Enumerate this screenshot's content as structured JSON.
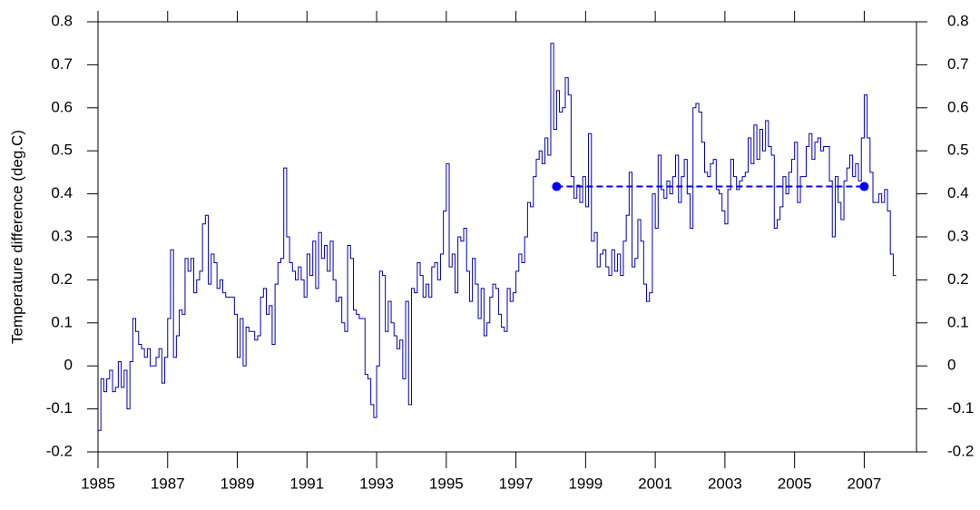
{
  "chart_data": {
    "type": "line",
    "step": true,
    "ylabel": "Temperature difference (deg.C)",
    "xlim": [
      1985,
      2008.5
    ],
    "xticks": [
      1985,
      1987,
      1989,
      1991,
      1993,
      1995,
      1997,
      1999,
      2001,
      2003,
      2005,
      2007
    ],
    "ylim": [
      -0.2,
      0.8
    ],
    "yticks": [
      -0.2,
      -0.1,
      0,
      0.1,
      0.2,
      0.3,
      0.4,
      0.5,
      0.6,
      0.7,
      0.8
    ],
    "y2lim": [
      -0.2,
      0.8
    ],
    "y2ticks": [
      -0.2,
      -0.1,
      0,
      0.1,
      0.2,
      0.3,
      0.4,
      0.5,
      0.6,
      0.7,
      0.8
    ],
    "series": [
      {
        "color": "#0000b0",
        "x": [
          1985,
          1985.083,
          1985.167,
          1985.25,
          1985.333,
          1985.417,
          1985.5,
          1985.583,
          1985.667,
          1985.75,
          1985.833,
          1985.917,
          1986,
          1986.083,
          1986.167,
          1986.25,
          1986.333,
          1986.417,
          1986.5,
          1986.583,
          1986.667,
          1986.75,
          1986.833,
          1986.917,
          1987,
          1987.083,
          1987.167,
          1987.25,
          1987.333,
          1987.417,
          1987.5,
          1987.583,
          1987.667,
          1987.75,
          1987.833,
          1987.917,
          1988,
          1988.083,
          1988.167,
          1988.25,
          1988.333,
          1988.417,
          1988.5,
          1988.583,
          1988.667,
          1988.75,
          1988.833,
          1988.917,
          1989,
          1989.083,
          1989.167,
          1989.25,
          1989.333,
          1989.417,
          1989.5,
          1989.583,
          1989.667,
          1989.75,
          1989.833,
          1989.917,
          1990,
          1990.083,
          1990.167,
          1990.25,
          1990.333,
          1990.417,
          1990.5,
          1990.583,
          1990.667,
          1990.75,
          1990.833,
          1990.917,
          1991,
          1991.083,
          1991.167,
          1991.25,
          1991.333,
          1991.417,
          1991.5,
          1991.583,
          1991.667,
          1991.75,
          1991.833,
          1991.917,
          1992,
          1992.083,
          1992.167,
          1992.25,
          1992.333,
          1992.417,
          1992.5,
          1992.583,
          1992.667,
          1992.75,
          1992.833,
          1992.917,
          1993,
          1993.083,
          1993.167,
          1993.25,
          1993.333,
          1993.417,
          1993.5,
          1993.583,
          1993.667,
          1993.75,
          1993.833,
          1993.917,
          1994,
          1994.083,
          1994.167,
          1994.25,
          1994.333,
          1994.417,
          1994.5,
          1994.583,
          1994.667,
          1994.75,
          1994.833,
          1994.917,
          1995,
          1995.083,
          1995.167,
          1995.25,
          1995.333,
          1995.417,
          1995.5,
          1995.583,
          1995.667,
          1995.75,
          1995.833,
          1995.917,
          1996,
          1996.083,
          1996.167,
          1996.25,
          1996.333,
          1996.417,
          1996.5,
          1996.583,
          1996.667,
          1996.75,
          1996.833,
          1996.917,
          1997,
          1997.083,
          1997.167,
          1997.25,
          1997.333,
          1997.417,
          1997.5,
          1997.583,
          1997.667,
          1997.75,
          1997.833,
          1997.917,
          1998,
          1998.083,
          1998.167,
          1998.25,
          1998.333,
          1998.417,
          1998.5,
          1998.583,
          1998.667,
          1998.75,
          1998.833,
          1998.917,
          1999,
          1999.083,
          1999.167,
          1999.25,
          1999.333,
          1999.417,
          1999.5,
          1999.583,
          1999.667,
          1999.75,
          1999.833,
          1999.917,
          2000,
          2000.083,
          2000.167,
          2000.25,
          2000.333,
          2000.417,
          2000.5,
          2000.583,
          2000.667,
          2000.75,
          2000.833,
          2000.917,
          2001,
          2001.083,
          2001.167,
          2001.25,
          2001.333,
          2001.417,
          2001.5,
          2001.583,
          2001.667,
          2001.75,
          2001.833,
          2001.917,
          2002,
          2002.083,
          2002.167,
          2002.25,
          2002.333,
          2002.417,
          2002.5,
          2002.583,
          2002.667,
          2002.75,
          2002.833,
          2002.917,
          2003,
          2003.083,
          2003.167,
          2003.25,
          2003.333,
          2003.417,
          2003.5,
          2003.583,
          2003.667,
          2003.75,
          2003.833,
          2003.917,
          2004,
          2004.083,
          2004.167,
          2004.25,
          2004.333,
          2004.417,
          2004.5,
          2004.583,
          2004.667,
          2004.75,
          2004.833,
          2004.917,
          2005,
          2005.083,
          2005.167,
          2005.25,
          2005.333,
          2005.417,
          2005.5,
          2005.583,
          2005.667,
          2005.75,
          2005.833,
          2005.917,
          2006,
          2006.083,
          2006.167,
          2006.25,
          2006.333,
          2006.417,
          2006.5,
          2006.583,
          2006.667,
          2006.75,
          2006.833,
          2006.917,
          2007,
          2007.083,
          2007.167,
          2007.25,
          2007.333,
          2007.417,
          2007.5,
          2007.583,
          2007.667,
          2007.75,
          2007.833
        ],
        "values": [
          -0.15,
          -0.03,
          -0.06,
          -0.03,
          -0.01,
          -0.06,
          -0.05,
          0.01,
          -0.05,
          -0.01,
          -0.1,
          0.01,
          0.11,
          0.08,
          0.05,
          0.04,
          0.02,
          0.04,
          0,
          0,
          0.02,
          0.04,
          -0.04,
          0.02,
          0.11,
          0.27,
          0.02,
          0.07,
          0.13,
          0.12,
          0.25,
          0.22,
          0.25,
          0.17,
          0.2,
          0.22,
          0.33,
          0.35,
          0.19,
          0.26,
          0.24,
          0.18,
          0.2,
          0.17,
          0.16,
          0.16,
          0.16,
          0.12,
          0.02,
          0.11,
          0,
          0.09,
          0.08,
          0.08,
          0.06,
          0.07,
          0.16,
          0.18,
          0.12,
          0.14,
          0.05,
          0.19,
          0.24,
          0.25,
          0.46,
          0.3,
          0.24,
          0.22,
          0.2,
          0.23,
          0.2,
          0.16,
          0.26,
          0.21,
          0.29,
          0.18,
          0.31,
          0.25,
          0.28,
          0.22,
          0.29,
          0.2,
          0.15,
          0.16,
          0.1,
          0.08,
          0.28,
          0.25,
          0.13,
          0.12,
          0.11,
          0.11,
          -0.02,
          -0.03,
          -0.09,
          -0.12,
          0,
          0.22,
          0.21,
          0.08,
          0.15,
          0.1,
          0.07,
          0.04,
          0.06,
          -0.03,
          0.15,
          -0.09,
          0.18,
          0.17,
          0.24,
          0.21,
          0.16,
          0.19,
          0.16,
          0.23,
          0.24,
          0.2,
          0.26,
          0.36,
          0.47,
          0.23,
          0.26,
          0.17,
          0.3,
          0.29,
          0.32,
          0.22,
          0.15,
          0.25,
          0.19,
          0.11,
          0.18,
          0.07,
          0.1,
          0.16,
          0.19,
          0.18,
          0.12,
          0.09,
          0.08,
          0.18,
          0.15,
          0.17,
          0.22,
          0.26,
          0.24,
          0.3,
          0.38,
          0.37,
          0.44,
          0.48,
          0.5,
          0.47,
          0.53,
          0.49,
          0.75,
          0.55,
          0.64,
          0.59,
          0.6,
          0.67,
          0.63,
          0.44,
          0.39,
          0.42,
          0.38,
          0.44,
          0.37,
          0.54,
          0.29,
          0.31,
          0.23,
          0.26,
          0.27,
          0.23,
          0.21,
          0.27,
          0.22,
          0.26,
          0.21,
          0.29,
          0.35,
          0.45,
          0.23,
          0.25,
          0.34,
          0.29,
          0.19,
          0.15,
          0.17,
          0.4,
          0.32,
          0.49,
          0.41,
          0.39,
          0.43,
          0.4,
          0.44,
          0.49,
          0.38,
          0.44,
          0.48,
          0.4,
          0.32,
          0.6,
          0.61,
          0.59,
          0.52,
          0.45,
          0.44,
          0.47,
          0.48,
          0.41,
          0.4,
          0.36,
          0.33,
          0.41,
          0.48,
          0.44,
          0.41,
          0.43,
          0.44,
          0.45,
          0.53,
          0.47,
          0.56,
          0.48,
          0.55,
          0.5,
          0.57,
          0.51,
          0.49,
          0.32,
          0.34,
          0.37,
          0.44,
          0.4,
          0.45,
          0.48,
          0.52,
          0.38,
          0.44,
          0.44,
          0.51,
          0.54,
          0.48,
          0.52,
          0.53,
          0.5,
          0.51,
          0.51,
          0.43,
          0.3,
          0.44,
          0.38,
          0.34,
          0.43,
          0.46,
          0.49,
          0.44,
          0.47,
          0.43,
          0.53,
          0.63,
          0.53,
          0.45,
          0.38,
          0.38,
          0.4,
          0.38,
          0.41,
          0.36,
          0.26,
          0.21
        ]
      },
      {
        "color": "#0000ff",
        "dashed": true,
        "markers": true,
        "x": [
          1998.167,
          2007
        ],
        "values": [
          0.417,
          0.417
        ]
      }
    ]
  }
}
